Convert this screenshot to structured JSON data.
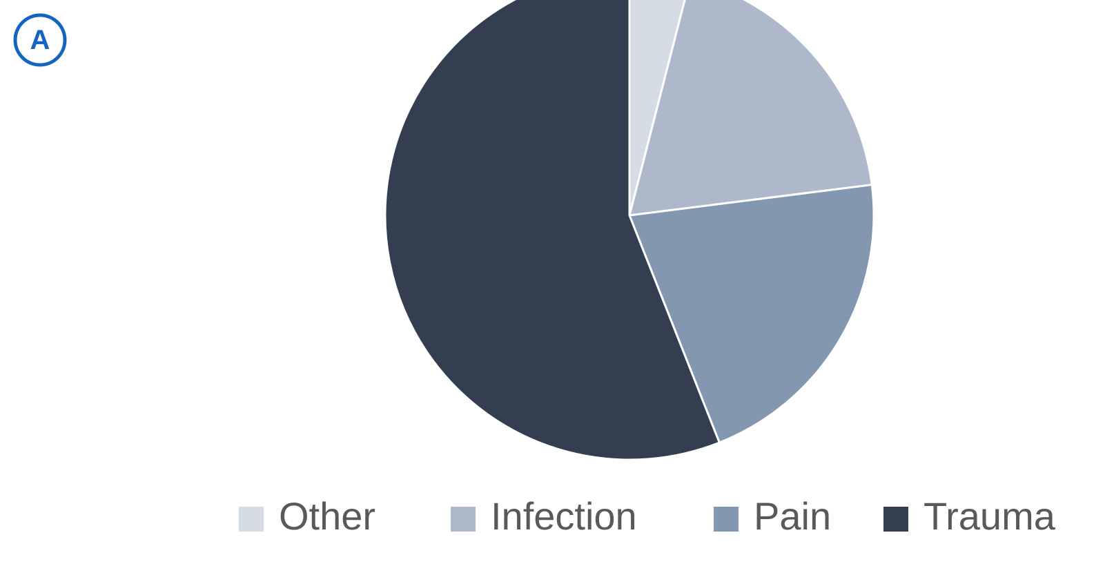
{
  "badge": "A",
  "chart_data": {
    "type": "pie",
    "categories": [
      "Other",
      "Infection",
      "Pain",
      "Trauma"
    ],
    "values": [
      4,
      19,
      21,
      56
    ],
    "colors": [
      "#d6dce5",
      "#adb9ca",
      "#8497b0",
      "#333f50"
    ],
    "legend": "bottom"
  }
}
